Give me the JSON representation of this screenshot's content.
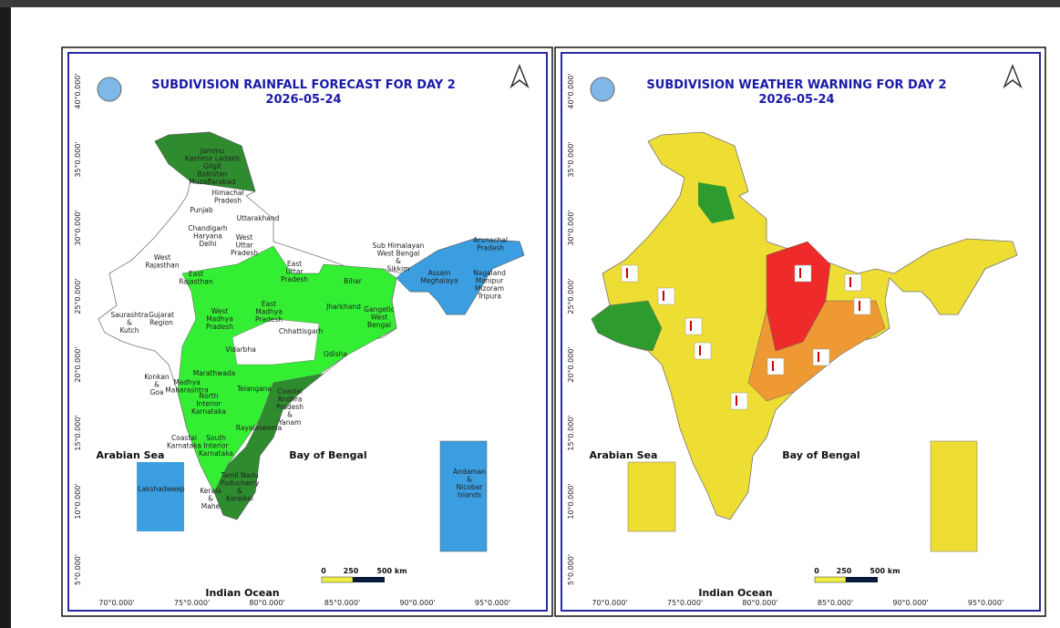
{
  "panels": [
    {
      "title": "SUBDIVISION RAINFALL FORECAST FOR DAY 2",
      "date": "2026-05-24",
      "lat_labels": [
        "40°0.000'",
        "35°0.000'",
        "30°0.000'",
        "25°0.000'",
        "20°0.000'",
        "15°0.000'",
        "10°0.000'",
        "5°0.000'"
      ],
      "lon_labels": [
        "70°0.000'",
        "75°0.000'",
        "80°0.000'",
        "85°0.000'",
        "90°0.000'",
        "95°0.000'"
      ],
      "seas": [
        "Arabian Sea",
        "Bay of Bengal",
        "Indian Ocean"
      ],
      "scale": [
        "0",
        "250",
        "500 km"
      ],
      "regions": [
        [
          "Jammu",
          "Kashmir Ladakh",
          "Gilgit",
          "Baltistan",
          "Muzaffarabad"
        ],
        [
          "Himachal",
          "Pradesh"
        ],
        [
          "Punjab"
        ],
        [
          "Uttarakhand"
        ],
        [
          "Chandigarh",
          "Haryana",
          "Delhi"
        ],
        [
          "West",
          "Uttar",
          "Pradesh"
        ],
        [
          "West",
          "Rajasthan"
        ],
        [
          "East",
          "Rajasthan"
        ],
        [
          "East",
          "Uttar",
          "Pradesh"
        ],
        [
          "Sub Himalayan",
          "West Bengal",
          "&",
          "Sikkim"
        ],
        [
          "Arunachal",
          "Pradesh"
        ],
        [
          "Assam",
          "Meghalaya"
        ],
        [
          "Nagaland",
          "Manipur",
          "Mizoram",
          "Tripura"
        ],
        [
          "Bihar"
        ],
        [
          "Saurashtra",
          "&",
          "Kutch"
        ],
        [
          "Gujarat",
          "Region"
        ],
        [
          "West",
          "Madhya",
          "Pradesh"
        ],
        [
          "East",
          "Madhya",
          "Pradesh"
        ],
        [
          "Jharkhand"
        ],
        [
          "Gangetic",
          "West",
          "Bengal"
        ],
        [
          "Chhattisgarh"
        ],
        [
          "Vidarbha"
        ],
        [
          "Odisha"
        ],
        [
          "Konkan",
          "&",
          "Goa"
        ],
        [
          "Madhya",
          "Maharashtra"
        ],
        [
          "Marathwada"
        ],
        [
          "North",
          "Interior",
          "Karnataka"
        ],
        [
          "Telangana"
        ],
        [
          "Coastal",
          "Andhra",
          "Pradesh",
          "&",
          "Yanam"
        ],
        [
          "Coastal",
          "Karnataka"
        ],
        [
          "South",
          "Interior",
          "Karnataka"
        ],
        [
          "Rayalaseema"
        ],
        [
          "Tamil Nadu",
          "Puducherry",
          "&",
          "Karaikal"
        ],
        [
          "Kerala",
          "&",
          "Mahe"
        ],
        [
          "Lakshadweep"
        ],
        [
          "Andaman",
          "&",
          "Nicobar",
          "Islands"
        ]
      ]
    },
    {
      "title": "SUBDIVISION WEATHER WARNING FOR DAY 2",
      "date": "2026-05-24",
      "lat_labels": [
        "40°0.000'",
        "35°0.000'",
        "30°0.000'",
        "25°0.000'",
        "20°0.000'",
        "15°0.000'",
        "10°0.000'",
        "5°0.000'"
      ],
      "lon_labels": [
        "70°0.000'",
        "75°0.000'",
        "80°0.000'",
        "85°0.000'",
        "90°0.000'",
        "95°0.000'"
      ],
      "seas": [
        "Arabian Sea",
        "Bay of Bengal",
        "Indian Ocean"
      ],
      "scale": [
        "0",
        "250",
        "500 km"
      ]
    }
  ]
}
